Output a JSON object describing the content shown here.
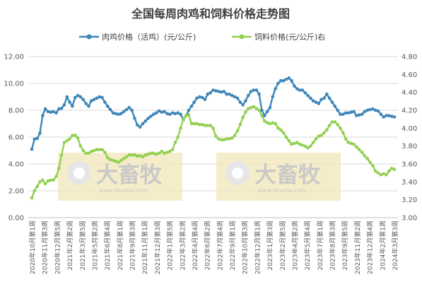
{
  "chart_data": {
    "type": "line",
    "title": "全国每周肉鸡和饲料价格走势图",
    "legend_position": "top",
    "grid": true,
    "ylim_left": [
      0,
      12
    ],
    "yticks_left": [
      "0.00",
      "2.00",
      "4.00",
      "6.00",
      "8.00",
      "10.00",
      "12.00"
    ],
    "ylim_right": [
      3.0,
      4.8
    ],
    "yticks_right": [
      "3.00",
      "3.20",
      "3.40",
      "3.60",
      "3.80",
      "4.00",
      "4.20",
      "4.40",
      "4.60",
      "4.80"
    ],
    "x_tick_labels": [
      "2020年10月第1周",
      "2020年11月第3周",
      "2020年12月第5周",
      "2021年2月第2周",
      "2021年3月第5周",
      "2021年5月第2周",
      "2021年6月第4周",
      "2021年8月第1周",
      "2021年9月第3周",
      "2021年11月第1周",
      "2021年12月第3周",
      "2022年1月第5周",
      "2022年3月第2周",
      "2022年4月第4周",
      "2022年6月第2周",
      "2022年7月第4周",
      "2022年9月第1周",
      "2022年10月第3周",
      "2022年12月第1周",
      "2023年1月第3周",
      "2023年2月第5周",
      "2023年4月第2周",
      "2023年5月第4周",
      "2023年7月第1周",
      "2023年8月第3周",
      "2023年9月第5周",
      "2023年11月第2周",
      "2023年12月第4周",
      "2024年2月第1周",
      "2024年3月第3周"
    ],
    "series": [
      {
        "name": "肉鸡价格（活鸡）(元/公斤)",
        "axis": "left",
        "color": "#3d87b8",
        "values": [
          5.1,
          5.85,
          5.9,
          6.3,
          7.6,
          8.1,
          7.9,
          7.85,
          7.9,
          7.8,
          8.1,
          8.15,
          8.4,
          9.0,
          8.6,
          8.3,
          8.95,
          9.1,
          9.0,
          8.8,
          8.5,
          8.3,
          8.7,
          8.8,
          8.9,
          9.0,
          8.95,
          8.6,
          8.3,
          8.05,
          7.8,
          7.75,
          7.7,
          7.75,
          7.9,
          8.05,
          8.2,
          8.0,
          7.4,
          6.9,
          6.75,
          7.0,
          7.2,
          7.4,
          7.55,
          7.7,
          7.8,
          7.95,
          7.85,
          7.9,
          7.75,
          7.7,
          7.8,
          7.75,
          7.8,
          7.7,
          7.3,
          7.6,
          8.0,
          8.3,
          8.6,
          8.9,
          9.0,
          8.95,
          8.8,
          9.2,
          9.3,
          9.5,
          9.45,
          9.4,
          9.35,
          9.4,
          9.2,
          9.2,
          9.1,
          9.0,
          8.9,
          8.6,
          8.4,
          8.7,
          9.1,
          9.4,
          9.5,
          9.5,
          9.2,
          8.0,
          7.6,
          7.9,
          8.2,
          9.0,
          9.6,
          10.0,
          10.2,
          10.2,
          10.3,
          10.4,
          10.2,
          9.8,
          9.6,
          9.5,
          9.5,
          9.3,
          9.1,
          8.9,
          8.7,
          8.6,
          8.5,
          8.8,
          8.9,
          9.2,
          8.9,
          8.6,
          8.3,
          8.0,
          7.7,
          7.7,
          7.8,
          7.8,
          7.85,
          7.9,
          7.6,
          7.65,
          7.7,
          7.9,
          8.0,
          8.05,
          8.1,
          8.0,
          7.95,
          7.7,
          7.5,
          7.6,
          7.6,
          7.55,
          7.5
        ]
      },
      {
        "name": "饲料价格(元/公斤)右",
        "axis": "right",
        "color": "#92d050",
        "values": [
          3.22,
          3.3,
          3.35,
          3.4,
          3.42,
          3.38,
          3.41,
          3.42,
          3.42,
          3.46,
          3.55,
          3.7,
          3.84,
          3.86,
          3.88,
          3.92,
          3.92,
          3.89,
          3.8,
          3.75,
          3.72,
          3.72,
          3.74,
          3.75,
          3.76,
          3.76,
          3.76,
          3.73,
          3.67,
          3.65,
          3.64,
          3.63,
          3.62,
          3.64,
          3.66,
          3.68,
          3.7,
          3.7,
          3.7,
          3.69,
          3.69,
          3.68,
          3.7,
          3.71,
          3.72,
          3.72,
          3.71,
          3.72,
          3.74,
          3.72,
          3.73,
          3.74,
          3.76,
          3.84,
          3.9,
          4.0,
          4.1,
          4.14,
          4.15,
          4.05,
          4.05,
          4.05,
          4.04,
          4.04,
          4.03,
          4.03,
          4.03,
          4.0,
          3.91,
          3.88,
          3.87,
          3.87,
          3.88,
          3.88,
          3.89,
          3.92,
          3.97,
          4.04,
          4.12,
          4.18,
          4.22,
          4.23,
          4.24,
          4.22,
          4.2,
          4.14,
          4.08,
          4.06,
          4.05,
          4.06,
          4.05,
          4.0,
          3.98,
          3.95,
          3.9,
          3.86,
          3.82,
          3.83,
          3.84,
          3.82,
          3.81,
          3.8,
          3.78,
          3.8,
          3.84,
          3.88,
          3.91,
          3.92,
          3.95,
          3.98,
          4.03,
          4.07,
          4.07,
          4.04,
          4.0,
          3.95,
          3.88,
          3.84,
          3.83,
          3.82,
          3.79,
          3.76,
          3.73,
          3.69,
          3.66,
          3.62,
          3.58,
          3.52,
          3.5,
          3.48,
          3.49,
          3.48,
          3.52,
          3.55,
          3.54
        ]
      }
    ]
  },
  "watermarks": [
    {
      "logo": "大畜牧",
      "sub": "www.dxumu.com"
    },
    {
      "logo": "大畜牧",
      "sub": "www.dxumu.com"
    }
  ]
}
